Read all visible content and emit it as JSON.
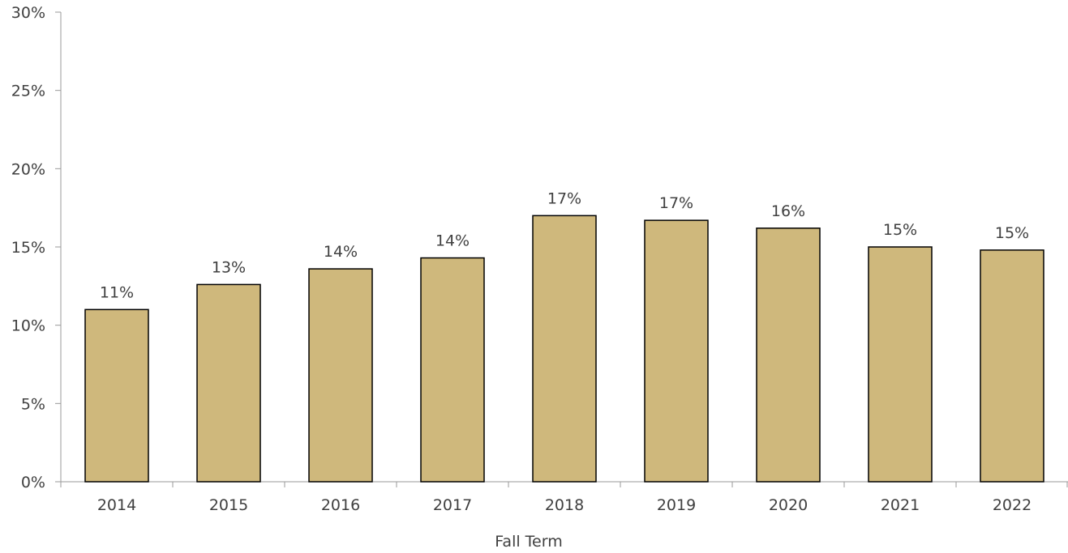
{
  "chart_data": {
    "type": "bar",
    "categories": [
      "2014",
      "2015",
      "2016",
      "2017",
      "2018",
      "2019",
      "2020",
      "2021",
      "2022"
    ],
    "values": [
      11.0,
      12.6,
      13.6,
      14.3,
      17.0,
      16.7,
      16.2,
      15.0,
      14.8
    ],
    "data_labels": [
      "11%",
      "13%",
      "14%",
      "14%",
      "17%",
      "17%",
      "16%",
      "15%",
      "15%"
    ],
    "title": "",
    "xlabel": "Fall Term",
    "ylabel": "",
    "ylim": [
      0,
      30
    ],
    "yticks": [
      0,
      5,
      10,
      15,
      20,
      25,
      30
    ],
    "ytick_labels": [
      "0%",
      "5%",
      "10%",
      "15%",
      "20%",
      "25%",
      "30%"
    ],
    "grid": false,
    "legend": "none",
    "bar_color": "#CFB87C",
    "bar_edge_color": "#000000",
    "axis_color": "#9a9a9a",
    "text_color": "#404040"
  }
}
